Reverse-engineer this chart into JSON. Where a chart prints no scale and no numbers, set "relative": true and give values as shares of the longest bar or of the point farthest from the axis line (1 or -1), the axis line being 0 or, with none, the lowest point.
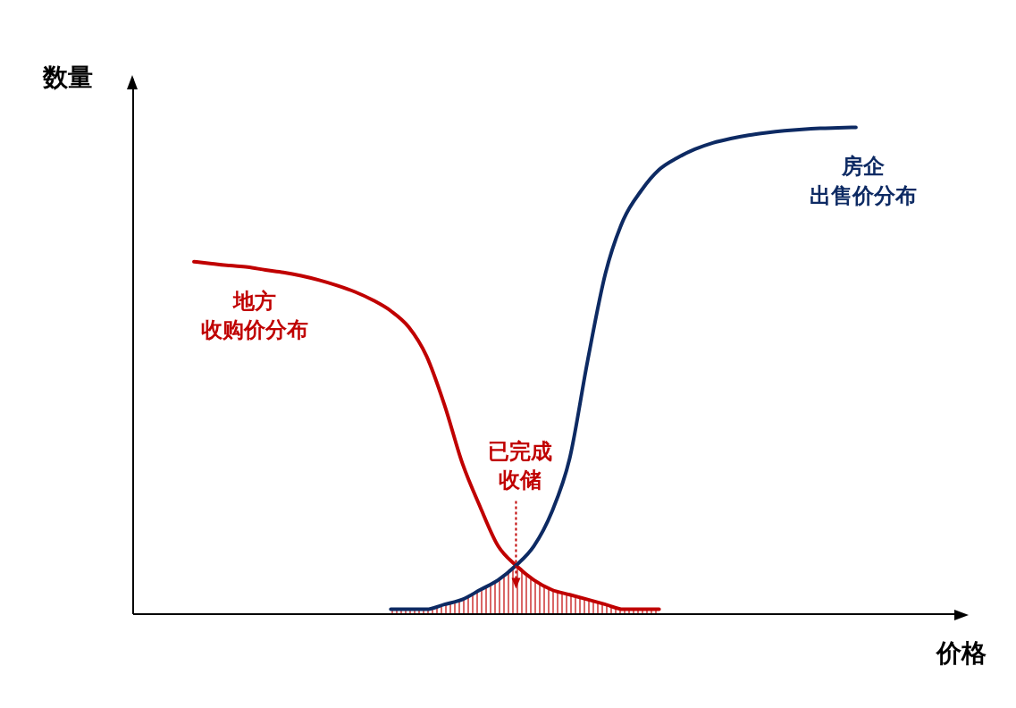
{
  "chart_data": {
    "type": "line",
    "relative": true,
    "xlabel": "价格",
    "ylabel": "数量",
    "annotations": [
      "已完成收储"
    ],
    "categories": [
      null,
      null,
      null,
      null,
      null,
      null,
      null,
      null,
      null,
      null,
      null,
      null,
      null,
      null,
      null,
      null,
      null,
      null,
      null,
      null,
      null,
      null,
      null,
      null,
      null,
      null,
      null,
      null,
      null,
      null,
      null,
      null,
      null,
      null,
      null,
      null,
      null,
      null,
      null,
      null,
      null,
      null,
      null,
      null,
      null,
      null,
      null
    ],
    "series": [
      {
        "name": "地方收购价分布",
        "color": "#c00000",
        "values": [
          null,
          null,
          null,
          0.724,
          0.72,
          0.716,
          0.713,
          0.707,
          0.702,
          0.695,
          0.686,
          0.675,
          0.662,
          0.645,
          0.623,
          0.59,
          0.53,
          0.43,
          0.31,
          0.22,
          0.14,
          0.1,
          0.07,
          0.05,
          0.04,
          0.03,
          0.02,
          0.01,
          0.01,
          0.01,
          null,
          null,
          null,
          null,
          null,
          null,
          null,
          null,
          null,
          null,
          null,
          null,
          null,
          null,
          null,
          null,
          null
        ]
      },
      {
        "name": "房企出售价分布",
        "color": "#0d2a63",
        "values": [
          null,
          null,
          null,
          null,
          null,
          null,
          null,
          null,
          null,
          null,
          null,
          null,
          null,
          null,
          0.01,
          0.01,
          0.01,
          0.02,
          0.03,
          0.05,
          0.07,
          0.1,
          0.14,
          0.21,
          0.32,
          0.52,
          0.7,
          0.81,
          0.87,
          0.913,
          0.937,
          0.955,
          0.968,
          0.977,
          0.984,
          0.989,
          0.993,
          0.996,
          0.998,
          0.999,
          1.0,
          null,
          null,
          null,
          null,
          null,
          null
        ]
      },
      {
        "type": "area",
        "color": "#c00000",
        "values": [
          null,
          null,
          null,
          null,
          null,
          null,
          null,
          null,
          null,
          null,
          null,
          null,
          null,
          null,
          0.01,
          0.01,
          0.01,
          0.02,
          0.03,
          0.05,
          0.07,
          0.1,
          0.07,
          0.05,
          0.04,
          0.03,
          0.02,
          0.01,
          0.01,
          0.01,
          null,
          null,
          null,
          null,
          null,
          null,
          null,
          null,
          null,
          null,
          null,
          null,
          null,
          null,
          null,
          null,
          null
        ]
      }
    ]
  }
}
